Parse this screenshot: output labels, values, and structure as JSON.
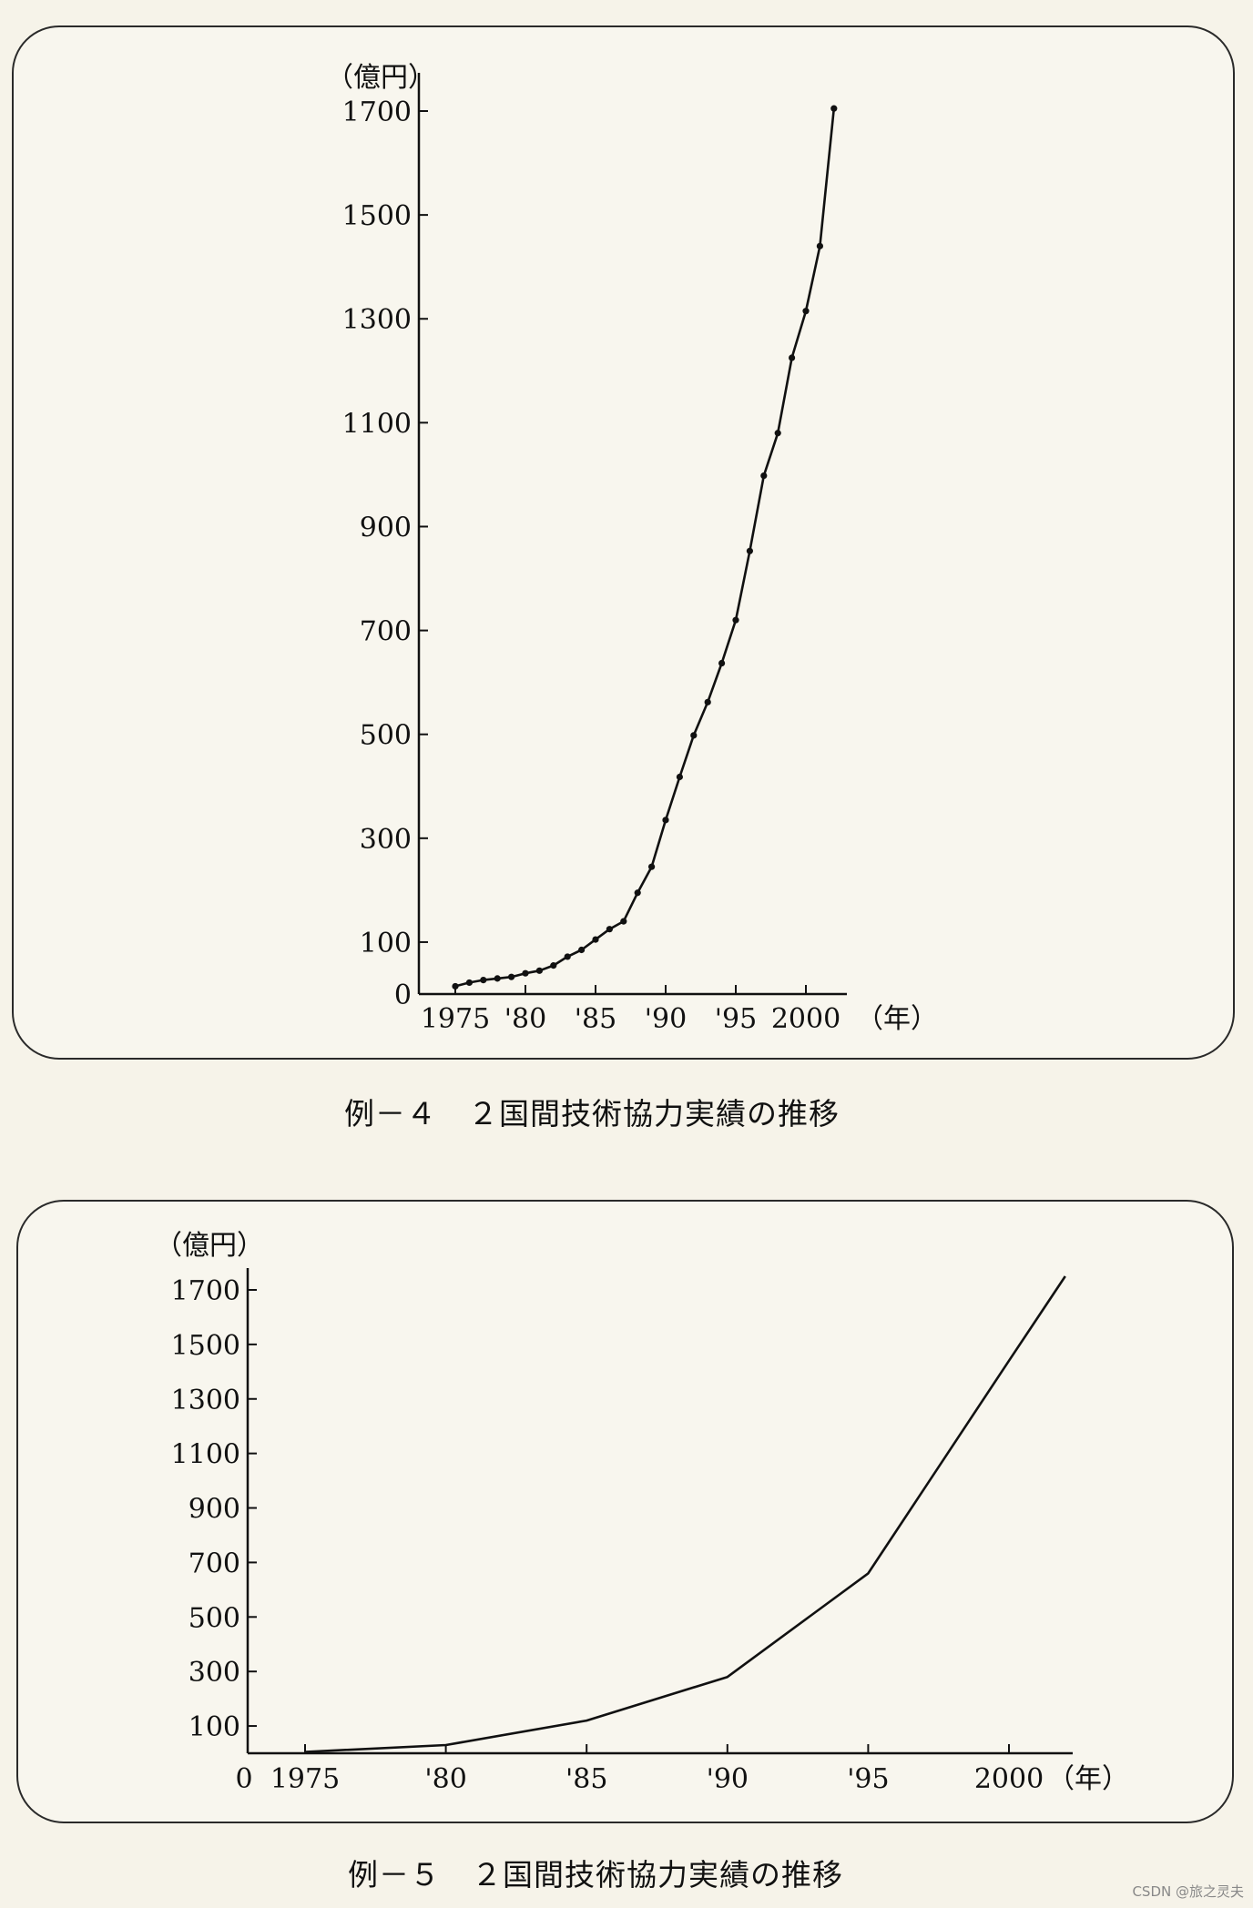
{
  "chart_data": [
    {
      "type": "line",
      "markers": true,
      "caption": "例－４　２国間技術協力実績の推移",
      "ylabel": "（億円）",
      "xlabel": "（年）",
      "y_ticks": [
        1700,
        1500,
        1300,
        1100,
        900,
        700,
        500,
        300,
        100,
        0
      ],
      "y_tick_labels": [
        "1700",
        "1500",
        "1300",
        "1100",
        "900",
        "700",
        "500",
        "300",
        "100",
        "0"
      ],
      "ylim": [
        0,
        1700
      ],
      "x_ticks": [
        1975,
        1980,
        1985,
        1990,
        1995,
        2000
      ],
      "x_tick_labels": [
        "1975",
        "'80",
        "'85",
        "'90",
        "'95",
        "2000"
      ],
      "xlim": [
        1975,
        2002
      ],
      "series": [
        {
          "x": [
            1975,
            1976,
            1977,
            1978,
            1979,
            1980,
            1981,
            1982,
            1983,
            1984,
            1985,
            1986,
            1987,
            1988,
            1989,
            1990,
            1991,
            1992,
            1993,
            1994,
            1995,
            1996,
            1997,
            1998,
            1999,
            2000,
            2001,
            2002
          ],
          "values": [
            15,
            22,
            27,
            30,
            33,
            40,
            45,
            55,
            72,
            85,
            105,
            125,
            140,
            195,
            245,
            335,
            418,
            498,
            562,
            637,
            720,
            853,
            998,
            1080,
            1225,
            1315,
            1440,
            1705
          ]
        }
      ]
    },
    {
      "type": "line",
      "markers": false,
      "caption": "例－５　２国間技術協力実績の推移",
      "ylabel": "（億円）",
      "xlabel": "（年）",
      "y_ticks": [
        1700,
        1500,
        1300,
        1100,
        900,
        700,
        500,
        300,
        100
      ],
      "y_tick_labels": [
        "1700",
        "1500",
        "1300",
        "1100",
        "900",
        "700",
        "500",
        "300",
        "100"
      ],
      "ylim": [
        0,
        1700
      ],
      "x_ticks": [
        1975,
        1980,
        1985,
        1990,
        1995,
        2000
      ],
      "x_tick_labels": [
        "1975",
        "'80",
        "'85",
        "'90",
        "'95",
        "2000"
      ],
      "zero_label": "0",
      "xlim": [
        1973,
        2002
      ],
      "series": [
        {
          "x": [
            1975,
            1980,
            1985,
            1990,
            1995,
            2000,
            2002
          ],
          "values": [
            5,
            30,
            120,
            280,
            660,
            1440,
            1750
          ]
        }
      ]
    }
  ],
  "watermark": "CSDN @旅之灵夫"
}
